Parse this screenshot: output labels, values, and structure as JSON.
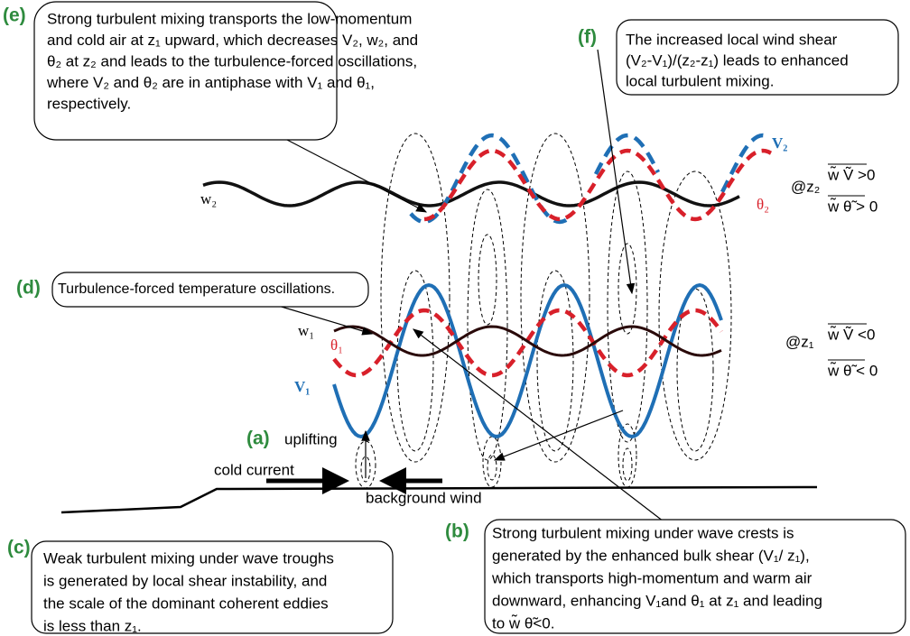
{
  "labels": {
    "a": "(a)",
    "b": "(b)",
    "c": "(c)",
    "d": "(d)",
    "e": "(e)",
    "f": "(f)"
  },
  "callouts": {
    "e": {
      "lines": [
        "Strong turbulent mixing transports the low-momentum",
        "and cold air at z₁ upward, which decreases V₂, w₂, and",
        "θ₂ at z₂ and leads to the turbulence-forced oscillations,",
        "where V₂ and θ₂ are in antiphase with V₁ and θ₁,",
        "respectively."
      ]
    },
    "f": {
      "lines": [
        "The increased local wind shear",
        "(V₂-V₁)/(z₂-z₁) leads to enhanced",
        "local turbulent mixing."
      ]
    },
    "d": {
      "lines": [
        "Turbulence-forced temperature oscillations."
      ]
    },
    "c": {
      "lines": [
        "Weak turbulent mixing under wave troughs",
        "is generated by local shear instability, and",
        "the scale of the dominant coherent eddies",
        "is less than z₁."
      ]
    },
    "b": {
      "lines": [
        "Strong turbulent mixing under wave crests is",
        "generated by the enhanced bulk shear (V₁/ z₁),",
        "which transports high-momentum and warm air",
        "downward, enhancing V₁and θ₁ at z₁ and leading",
        "to w̃ θ̃<0."
      ]
    }
  },
  "ground": {
    "uplifting": "uplifting",
    "cold_current": "cold current",
    "background_wind": "background wind"
  },
  "curves": {
    "w2": "w₂",
    "v2": "V₂",
    "theta2": "θ₂",
    "w1": "w₁",
    "theta1": "θ₁",
    "v1": "V₁"
  },
  "levels": {
    "z2": {
      "label": "@z₂",
      "flux_v": "w̃ Ṽ >0",
      "flux_theta": "w̃ θ̃ > 0"
    },
    "z1": {
      "label": "@z₁",
      "flux_v": "w̃ Ṽ <0",
      "flux_theta": "w̃ θ̃ < 0"
    }
  }
}
